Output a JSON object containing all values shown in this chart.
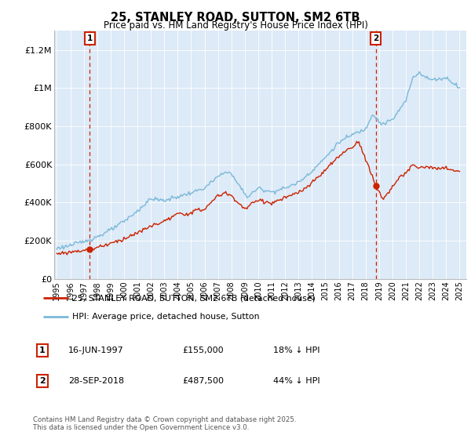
{
  "title": "25, STANLEY ROAD, SUTTON, SM2 6TB",
  "subtitle": "Price paid vs. HM Land Registry's House Price Index (HPI)",
  "ylabel_ticks": [
    "£0",
    "£200K",
    "£400K",
    "£600K",
    "£800K",
    "£1M",
    "£1.2M"
  ],
  "ytick_values": [
    0,
    200000,
    400000,
    600000,
    800000,
    1000000,
    1200000
  ],
  "ylim": [
    0,
    1300000
  ],
  "xlim_start": 1994.8,
  "xlim_end": 2025.5,
  "red_color": "#cc2200",
  "blue_color": "#7ab8d9",
  "bg_color": "#ddeaf7",
  "marker1": {
    "year_float": 1997.46,
    "price": 155000,
    "label": "1",
    "date": "16-JUN-1997",
    "price_str": "£155,000",
    "pct": "18% ↓ HPI"
  },
  "marker2": {
    "year_float": 2018.75,
    "price": 487500,
    "label": "2",
    "date": "28-SEP-2018",
    "price_str": "£487,500",
    "pct": "44% ↓ HPI"
  },
  "legend_line1": "25, STANLEY ROAD, SUTTON, SM2 6TB (detached house)",
  "legend_line2": "HPI: Average price, detached house, Sutton",
  "footer": "Contains HM Land Registry data © Crown copyright and database right 2025.\nThis data is licensed under the Open Government Licence v3.0.",
  "xticks": [
    1995,
    1996,
    1997,
    1998,
    1999,
    2000,
    2001,
    2002,
    2003,
    2004,
    2005,
    2006,
    2007,
    2008,
    2009,
    2010,
    2011,
    2012,
    2013,
    2014,
    2015,
    2016,
    2017,
    2018,
    2019,
    2020,
    2021,
    2022,
    2023,
    2024,
    2025
  ],
  "hpi_years": [
    1995.0,
    1995.08,
    1995.17,
    1995.25,
    1995.33,
    1995.42,
    1995.5,
    1995.58,
    1995.67,
    1995.75,
    1995.83,
    1995.92,
    1996.0,
    1996.08,
    1996.17,
    1996.25,
    1996.33,
    1996.42,
    1996.5,
    1996.58,
    1996.67,
    1996.75,
    1996.83,
    1996.92,
    1997.0,
    1997.08,
    1997.17,
    1997.25,
    1997.33,
    1997.42,
    1997.5,
    1997.58,
    1997.67,
    1997.75,
    1997.83,
    1997.92,
    1998.0,
    1998.08,
    1998.17,
    1998.25,
    1998.33,
    1998.42,
    1998.5,
    1998.58,
    1998.67,
    1998.75,
    1998.83,
    1998.92,
    1999.0,
    1999.08,
    1999.17,
    1999.25,
    1999.33,
    1999.42,
    1999.5,
    1999.58,
    1999.67,
    1999.75,
    1999.83,
    1999.92,
    2000.0,
    2000.08,
    2000.17,
    2000.25,
    2000.33,
    2000.42,
    2000.5,
    2000.58,
    2000.67,
    2000.75,
    2000.83,
    2000.92,
    2001.0,
    2001.08,
    2001.17,
    2001.25,
    2001.33,
    2001.42,
    2001.5,
    2001.58,
    2001.67,
    2001.75,
    2001.83,
    2001.92,
    2002.0,
    2002.08,
    2002.17,
    2002.25,
    2002.33,
    2002.42,
    2002.5,
    2002.58,
    2002.67,
    2002.75,
    2002.83,
    2002.92,
    2003.0,
    2003.08,
    2003.17,
    2003.25,
    2003.33,
    2003.42,
    2003.5,
    2003.58,
    2003.67,
    2003.75,
    2003.83,
    2003.92,
    2004.0,
    2004.08,
    2004.17,
    2004.25,
    2004.33,
    2004.42,
    2004.5,
    2004.58,
    2004.67,
    2004.75,
    2004.83,
    2004.92,
    2005.0,
    2005.08,
    2005.17,
    2005.25,
    2005.33,
    2005.42,
    2005.5,
    2005.58,
    2005.67,
    2005.75,
    2005.83,
    2005.92,
    2006.0,
    2006.08,
    2006.17,
    2006.25,
    2006.33,
    2006.42,
    2006.5,
    2006.58,
    2006.67,
    2006.75,
    2006.83,
    2006.92,
    2007.0,
    2007.08,
    2007.17,
    2007.25,
    2007.33,
    2007.42,
    2007.5,
    2007.58,
    2007.67,
    2007.75,
    2007.83,
    2007.92,
    2008.0,
    2008.08,
    2008.17,
    2008.25,
    2008.33,
    2008.42,
    2008.5,
    2008.58,
    2008.67,
    2008.75,
    2008.83,
    2008.92,
    2009.0,
    2009.08,
    2009.17,
    2009.25,
    2009.33,
    2009.42,
    2009.5,
    2009.58,
    2009.67,
    2009.75,
    2009.83,
    2009.92,
    2010.0,
    2010.08,
    2010.17,
    2010.25,
    2010.33,
    2010.42,
    2010.5,
    2010.58,
    2010.67,
    2010.75,
    2010.83,
    2010.92,
    2011.0,
    2011.08,
    2011.17,
    2011.25,
    2011.33,
    2011.42,
    2011.5,
    2011.58,
    2011.67,
    2011.75,
    2011.83,
    2011.92,
    2012.0,
    2012.08,
    2012.17,
    2012.25,
    2012.33,
    2012.42,
    2012.5,
    2012.58,
    2012.67,
    2012.75,
    2012.83,
    2012.92,
    2013.0,
    2013.08,
    2013.17,
    2013.25,
    2013.33,
    2013.42,
    2013.5,
    2013.58,
    2013.67,
    2013.75,
    2013.83,
    2013.92,
    2014.0,
    2014.08,
    2014.17,
    2014.25,
    2014.33,
    2014.42,
    2014.5,
    2014.58,
    2014.67,
    2014.75,
    2014.83,
    2014.92,
    2015.0,
    2015.08,
    2015.17,
    2015.25,
    2015.33,
    2015.42,
    2015.5,
    2015.58,
    2015.67,
    2015.75,
    2015.83,
    2015.92,
    2016.0,
    2016.08,
    2016.17,
    2016.25,
    2016.33,
    2016.42,
    2016.5,
    2016.58,
    2016.67,
    2016.75,
    2016.83,
    2016.92,
    2017.0,
    2017.08,
    2017.17,
    2017.25,
    2017.33,
    2017.42,
    2017.5,
    2017.58,
    2017.67,
    2017.75,
    2017.83,
    2017.92,
    2018.0,
    2018.08,
    2018.17,
    2018.25,
    2018.33,
    2018.42,
    2018.5,
    2018.58,
    2018.67,
    2018.75,
    2018.83,
    2018.92,
    2019.0,
    2019.08,
    2019.17,
    2019.25,
    2019.33,
    2019.42,
    2019.5,
    2019.58,
    2019.67,
    2019.75,
    2019.83,
    2019.92,
    2020.0,
    2020.08,
    2020.17,
    2020.25,
    2020.33,
    2020.42,
    2020.5,
    2020.58,
    2020.67,
    2020.75,
    2020.83,
    2020.92,
    2021.0,
    2021.08,
    2021.17,
    2021.25,
    2021.33,
    2021.42,
    2021.5,
    2021.58,
    2021.67,
    2021.75,
    2021.83,
    2021.92,
    2022.0,
    2022.08,
    2022.17,
    2022.25,
    2022.33,
    2022.42,
    2022.5,
    2022.58,
    2022.67,
    2022.75,
    2022.83,
    2022.92,
    2023.0,
    2023.08,
    2023.17,
    2023.25,
    2023.33,
    2023.42,
    2023.5,
    2023.58,
    2023.67,
    2023.75,
    2023.83,
    2023.92,
    2024.0,
    2024.08,
    2024.17,
    2024.25,
    2024.33,
    2024.42,
    2024.5,
    2024.58,
    2024.67,
    2024.75,
    2024.83,
    2024.92,
    2025.0
  ]
}
